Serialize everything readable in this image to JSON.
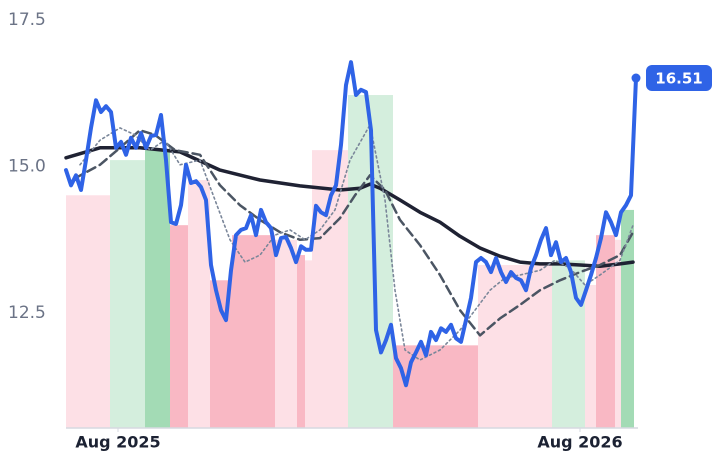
{
  "chart_data": {
    "type": "line",
    "xlim": [
      0,
      114
    ],
    "ylim": [
      10.54,
      17.5
    ],
    "yticks": [
      12.5,
      {
        "value": 15,
        "label": "15.0"
      },
      17.5
    ],
    "xticks": [
      {
        "value": 10.4,
        "label": "Aug 2025"
      },
      {
        "value": 102.8,
        "label": "Aug 2026"
      }
    ],
    "bands": [
      {
        "start": 0,
        "end": 8.8,
        "value": 14.51,
        "color": "#fde0e6"
      },
      {
        "start": 8.8,
        "end": 15.8,
        "value": 15.11,
        "color": "#d4eedd"
      },
      {
        "start": 15.8,
        "end": 20.8,
        "value": 15.28,
        "color": "#a3dbb5"
      },
      {
        "start": 20.8,
        "end": 24.4,
        "value": 14.0,
        "color": "#f9b8c4"
      },
      {
        "start": 24.4,
        "end": 28.8,
        "value": 14.77,
        "color": "#fde0e6"
      },
      {
        "start": 28.8,
        "end": 33.2,
        "value": 13.06,
        "color": "#f9b8c4"
      },
      {
        "start": 33.2,
        "end": 41.8,
        "value": 13.83,
        "color": "#f9b8c4"
      },
      {
        "start": 41.8,
        "end": 46.2,
        "value": 13.75,
        "color": "#fde0e6"
      },
      {
        "start": 46.2,
        "end": 47.8,
        "value": 13.49,
        "color": "#f9b8c4"
      },
      {
        "start": 47.8,
        "end": 49.2,
        "value": 13.4,
        "color": "#fde0e6"
      },
      {
        "start": 49.2,
        "end": 56.4,
        "value": 15.28,
        "color": "#fde0e6"
      },
      {
        "start": 56.4,
        "end": 65.4,
        "value": 16.22,
        "color": "#d4eedd"
      },
      {
        "start": 65.4,
        "end": 82.4,
        "value": 11.95,
        "color": "#f9b8c4"
      },
      {
        "start": 82.4,
        "end": 97.2,
        "value": 13.32,
        "color": "#fde0e6"
      },
      {
        "start": 97.2,
        "end": 103.8,
        "value": 13.4,
        "color": "#d4eedd"
      },
      {
        "start": 103.8,
        "end": 106,
        "value": 12.98,
        "color": "#fde0e6"
      },
      {
        "start": 106,
        "end": 109.8,
        "value": 13.83,
        "color": "#f9b8c4"
      },
      {
        "start": 109.8,
        "end": 111,
        "value": 13.75,
        "color": "#fde0e6"
      },
      {
        "start": 111,
        "end": 113.6,
        "value": 14.26,
        "color": "#a3dbb5"
      }
    ],
    "series": [
      {
        "color": "#1f2233",
        "width": 3.5,
        "dash": "solid",
        "x": [
          0,
          6.8,
          14.8,
          22.8,
          30.8,
          38.8,
          46.8,
          54.8,
          58.8,
          60.8,
          62.8,
          66.8,
          70.8,
          74.8,
          78.8,
          82.8,
          86.8,
          90.8,
          94.8,
          98.8,
          102.8,
          106.8,
          110.8,
          113.4
        ],
        "values": [
          15.15,
          15.32,
          15.32,
          15.25,
          14.94,
          14.77,
          14.67,
          14.6,
          14.63,
          14.7,
          14.63,
          14.43,
          14.22,
          14.05,
          13.81,
          13.61,
          13.47,
          13.37,
          13.34,
          13.34,
          13.32,
          13.3,
          13.34,
          13.37
        ]
      },
      {
        "color": "#4b5563",
        "width": 2.5,
        "dash": "dashed",
        "x": [
          1.8,
          6.8,
          10.8,
          14.8,
          17.8,
          21.8,
          26.8,
          30.8,
          34.8,
          38.8,
          42.8,
          46.8,
          50.8,
          54.8,
          57.8,
          60.8,
          63.8,
          66.8,
          70.8,
          74.8,
          78.8,
          82.8,
          86.8,
          90.8,
          94.8,
          98.8,
          102.8,
          106.8,
          110.8,
          113.4
        ],
        "values": [
          14.8,
          15.03,
          15.32,
          15.62,
          15.54,
          15.28,
          15.2,
          14.68,
          14.34,
          14.09,
          13.88,
          13.75,
          13.78,
          14.12,
          14.51,
          14.85,
          14.6,
          14.09,
          13.66,
          13.15,
          12.55,
          12.12,
          12.41,
          12.64,
          12.89,
          13.06,
          13.2,
          13.32,
          13.49,
          13.88
        ]
      },
      {
        "color": "#7a8699",
        "width": 1.6,
        "dash": "dotted",
        "x": [
          2.8,
          6.8,
          10.8,
          13.8,
          16.8,
          19.8,
          22.8,
          26.8,
          29.8,
          32.8,
          35.8,
          38.8,
          41.8,
          44.8,
          47.8,
          50.8,
          53.8,
          56.8,
          60.8,
          63.8,
          65.8,
          67.8,
          70.8,
          74.8,
          78.8,
          81.8,
          84.8,
          87.8,
          90.8,
          94.8,
          97.8,
          100.8,
          103.8,
          106.8,
          110.8,
          113.4
        ],
        "values": [
          15.03,
          15.45,
          15.66,
          15.54,
          15.28,
          15.45,
          15.03,
          15.11,
          14.43,
          13.75,
          13.37,
          13.49,
          13.83,
          13.92,
          13.75,
          13.92,
          14.26,
          15.11,
          15.71,
          14.43,
          12.89,
          11.87,
          11.7,
          11.87,
          12.21,
          12.55,
          12.89,
          13.1,
          13.15,
          13.23,
          13.4,
          13.27,
          12.98,
          13.15,
          13.4,
          14.0
        ]
      },
      {
        "color": "#2f63e6",
        "width": 4,
        "dash": "solid",
        "badge": true,
        "x": [
          0,
          1,
          2,
          3,
          4,
          5,
          6,
          7,
          8,
          9,
          10,
          11,
          12,
          13,
          14,
          15,
          16,
          17,
          18,
          19,
          20,
          21,
          22,
          23,
          24,
          25,
          26,
          27,
          28,
          29,
          30,
          31,
          32,
          33,
          34,
          35,
          36,
          37,
          38,
          39,
          40,
          41,
          42,
          43,
          44,
          45,
          46,
          47,
          48,
          49,
          50,
          51,
          52,
          53,
          54,
          55,
          56,
          57,
          58,
          59,
          60,
          61,
          62,
          63,
          64,
          65,
          66,
          67,
          68,
          69,
          70,
          71,
          72,
          73,
          74,
          75,
          76,
          77,
          78,
          79,
          80,
          81,
          82,
          83,
          84,
          85,
          86,
          87,
          88,
          89,
          90,
          91,
          92,
          93,
          94,
          95,
          96,
          97,
          98,
          99,
          100,
          101,
          102,
          103,
          104,
          105,
          106,
          107,
          108,
          109,
          110,
          111,
          112,
          113,
          114
        ],
        "values": [
          14.94,
          14.68,
          14.85,
          14.6,
          15.11,
          15.66,
          16.13,
          15.93,
          16.03,
          15.93,
          15.32,
          15.42,
          15.2,
          15.49,
          15.32,
          15.57,
          15.32,
          15.52,
          15.54,
          15.88,
          15.11,
          14.05,
          14.02,
          14.34,
          15.03,
          14.72,
          14.75,
          14.65,
          14.43,
          13.32,
          12.89,
          12.55,
          12.38,
          13.23,
          13.83,
          13.92,
          13.95,
          14.17,
          13.83,
          14.26,
          14.05,
          13.95,
          13.49,
          13.78,
          13.8,
          13.61,
          13.37,
          13.64,
          13.58,
          13.58,
          14.33,
          14.22,
          14.17,
          14.51,
          14.68,
          15.37,
          16.39,
          16.78,
          16.22,
          16.31,
          16.27,
          15.62,
          12.21,
          11.83,
          12.04,
          12.3,
          11.73,
          11.56,
          11.27,
          11.66,
          11.83,
          12.01,
          11.78,
          12.18,
          12.04,
          12.24,
          12.18,
          12.3,
          12.07,
          12.01,
          12.38,
          12.76,
          13.37,
          13.44,
          13.37,
          13.2,
          13.44,
          13.2,
          13.03,
          13.2,
          13.1,
          13.06,
          12.89,
          13.27,
          13.49,
          13.75,
          13.95,
          13.49,
          13.71,
          13.37,
          13.44,
          13.2,
          12.76,
          12.64,
          12.89,
          13.15,
          13.44,
          13.78,
          14.22,
          14.05,
          13.83,
          14.22,
          14.34,
          14.51,
          16.51
        ]
      }
    ]
  }
}
